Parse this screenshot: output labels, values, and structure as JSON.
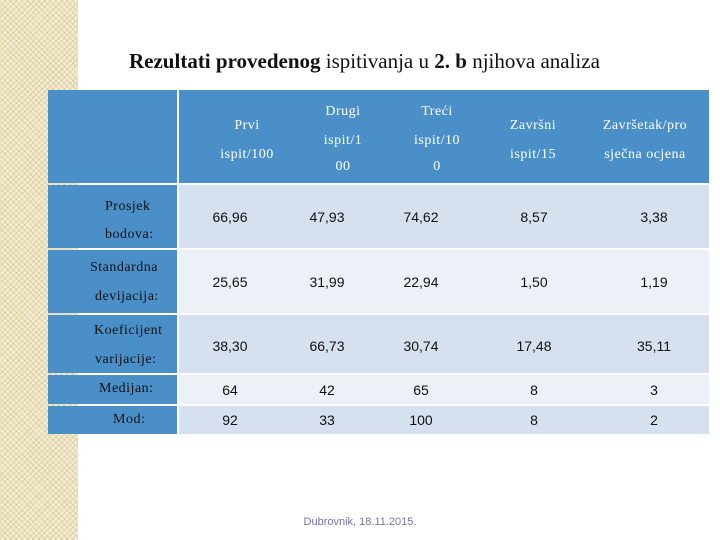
{
  "title": {
    "part1": "Rezultati provedenog",
    "part2": " ispitivanja u ",
    "part3": "2. b",
    "part4": "  njihova analiza"
  },
  "columns": [
    {
      "lines": [
        "Prvi",
        "ispit/100"
      ]
    },
    {
      "lines": [
        "Drugi",
        "ispit/1",
        "00"
      ]
    },
    {
      "lines": [
        "Treći",
        "ispit/10",
        "0"
      ]
    },
    {
      "lines": [
        "Završni",
        "ispit/15"
      ]
    },
    {
      "lines": [
        "Završetak/pro",
        "sječna ocjena"
      ]
    }
  ],
  "rows": [
    {
      "label": [
        "Prosjek",
        "bodova:"
      ],
      "values": [
        "66,96",
        "47,93",
        "74,62",
        "8,57",
        "3,38"
      ]
    },
    {
      "label": [
        "Standardna",
        "devijacija:"
      ],
      "values": [
        "25,65",
        "31,99",
        "22,94",
        "1,50",
        "1,19"
      ]
    },
    {
      "label": [
        "Koeficijent",
        "varijacije:"
      ],
      "values": [
        "38,30",
        "66,73",
        "30,74",
        "17,48",
        "35,11"
      ]
    },
    {
      "label": [
        "Medijan:"
      ],
      "values": [
        "64",
        "42",
        "65",
        "8",
        "3"
      ]
    },
    {
      "label": [
        "Mod:"
      ],
      "values": [
        "92",
        "33",
        "100",
        "8",
        "2"
      ]
    }
  ],
  "footer": "Dubrovnik, 18.11.2015.",
  "colors": {
    "header_bg": "#4a8fc7",
    "row_light": "#d6e0ee",
    "row_alt": "#ecf0f7",
    "footer_text": "#7a6fb0"
  }
}
